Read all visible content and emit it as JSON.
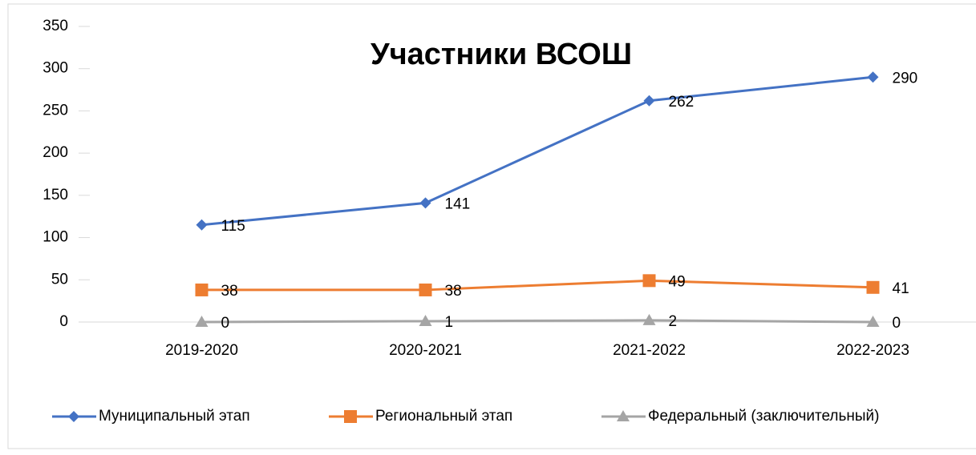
{
  "chart_data": {
    "type": "line",
    "title": "Участники ВСОШ",
    "categories": [
      "2019-2020",
      "2020-2021",
      "2021-2022",
      "2022-2023"
    ],
    "series": [
      {
        "name": "Муниципальный этап",
        "color": "#4472c4",
        "marker": "diamond",
        "values": [
          115,
          141,
          262,
          290
        ]
      },
      {
        "name": "Региональный этап",
        "color": "#ed7d31",
        "marker": "square",
        "values": [
          38,
          38,
          49,
          41
        ]
      },
      {
        "name": "Федеральный (заключительный)",
        "color": "#a5a5a5",
        "marker": "triangle",
        "values": [
          0,
          1,
          2,
          0
        ]
      }
    ],
    "ylim": [
      0,
      350
    ],
    "yticks": [
      0,
      50,
      100,
      150,
      200,
      250,
      300,
      350
    ],
    "grid": false,
    "legend": "bottom"
  }
}
